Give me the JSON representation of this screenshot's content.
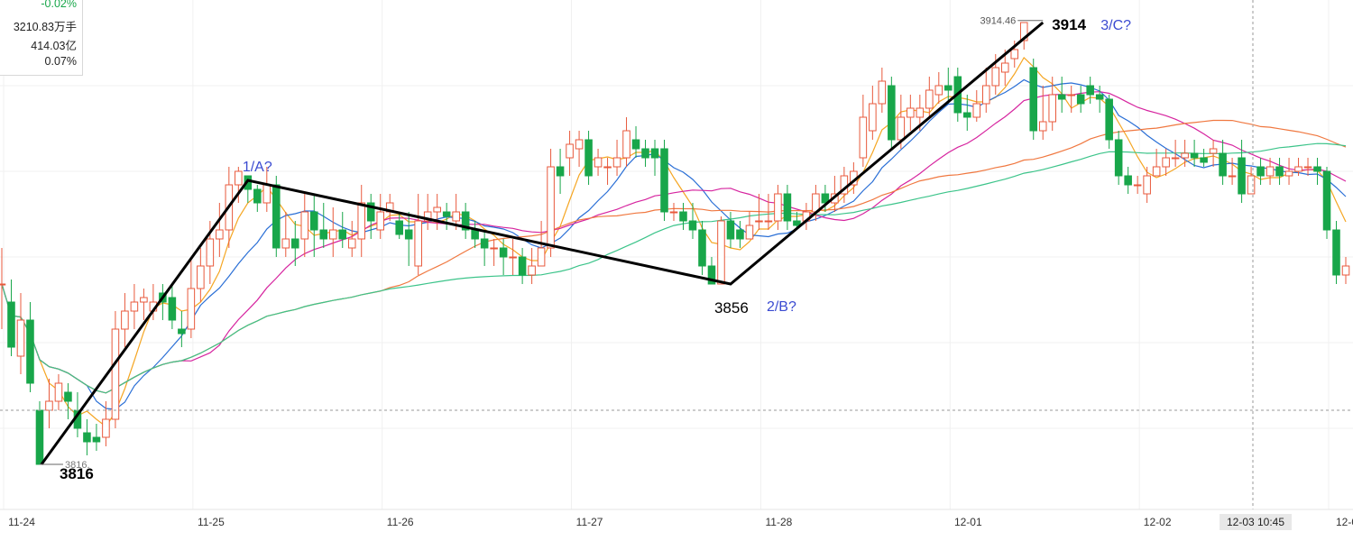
{
  "info_panel": {
    "change_pct": "-0.02%",
    "volume": "3210.83万手",
    "amount": "414.03亿",
    "turnover": "0.07%"
  },
  "crosshair_time": "12-03 10:45",
  "chart_data": {
    "type": "candlestick",
    "title": "",
    "xlabel": "",
    "ylabel": "",
    "x_tick_labels": [
      "11-24",
      "11-25",
      "11-26",
      "11-27",
      "11-28",
      "12-01",
      "12-02",
      "12-0"
    ],
    "ylim": [
      3810,
      3916
    ],
    "high_marker": "3914.46",
    "low_marker": "3816.",
    "annotations": {
      "points": [
        {
          "price": "3816",
          "wave": ""
        },
        {
          "price": "",
          "wave": "1/A?"
        },
        {
          "price": "3856",
          "wave": "2/B?"
        },
        {
          "price": "3914",
          "wave": "3/C?"
        }
      ],
      "trend_points": [
        3816,
        3879,
        3856,
        3914
      ]
    },
    "candles": [
      [
        3856,
        3856,
        3864,
        3846
      ],
      [
        3852,
        3842,
        3857,
        3840
      ],
      [
        3840,
        3848,
        3854,
        3836
      ],
      [
        3848,
        3834,
        3852,
        3832
      ],
      [
        3828,
        3816,
        3830,
        3816
      ],
      [
        3828,
        3830,
        3835,
        3824
      ],
      [
        3830,
        3834,
        3836,
        3828
      ],
      [
        3832,
        3830,
        3834,
        3826
      ],
      [
        3828,
        3824,
        3832,
        3822
      ],
      [
        3823,
        3821,
        3826,
        3818
      ],
      [
        3822,
        3821,
        3825,
        3819
      ],
      [
        3822,
        3826,
        3830,
        3820
      ],
      [
        3826,
        3846,
        3850,
        3824
      ],
      [
        3846,
        3850,
        3854,
        3842
      ],
      [
        3850,
        3852,
        3856,
        3846
      ],
      [
        3852,
        3853,
        3855,
        3848
      ],
      [
        3850,
        3852,
        3856,
        3848
      ],
      [
        3854,
        3852,
        3856,
        3848
      ],
      [
        3853,
        3848,
        3856,
        3846
      ],
      [
        3846,
        3845,
        3850,
        3842
      ],
      [
        3846,
        3855,
        3862,
        3844
      ],
      [
        3855,
        3860,
        3864,
        3852
      ],
      [
        3860,
        3866,
        3870,
        3856
      ],
      [
        3866,
        3868,
        3874,
        3862
      ],
      [
        3868,
        3878,
        3882,
        3864
      ],
      [
        3878,
        3881,
        3882,
        3874
      ],
      [
        3880,
        3877,
        3880,
        3874
      ],
      [
        3877,
        3874,
        3878,
        3872
      ],
      [
        3874,
        3878,
        3882,
        3872
      ],
      [
        3878,
        3864,
        3880,
        3862
      ],
      [
        3864,
        3866,
        3872,
        3862
      ],
      [
        3866,
        3864,
        3870,
        3860
      ],
      [
        3866,
        3872,
        3876,
        3862
      ],
      [
        3872,
        3868,
        3876,
        3862
      ],
      [
        3868,
        3866,
        3874,
        3864
      ],
      [
        3866,
        3868,
        3873,
        3862
      ],
      [
        3868,
        3866,
        3872,
        3864
      ],
      [
        3864,
        3866,
        3870,
        3862
      ],
      [
        3866,
        3874,
        3878,
        3862
      ],
      [
        3874,
        3870,
        3876,
        3866
      ],
      [
        3868,
        3872,
        3876,
        3866
      ],
      [
        3872,
        3874,
        3876,
        3870
      ],
      [
        3870,
        3867,
        3872,
        3866
      ],
      [
        3868,
        3866,
        3872,
        3860
      ],
      [
        3860,
        3870,
        3876,
        3858
      ],
      [
        3870,
        3872,
        3876,
        3868
      ],
      [
        3872,
        3873,
        3876,
        3868
      ],
      [
        3872,
        3871,
        3874,
        3868
      ],
      [
        3870,
        3872,
        3876,
        3868
      ],
      [
        3872,
        3868,
        3874,
        3866
      ],
      [
        3868,
        3866,
        3870,
        3864
      ],
      [
        3866,
        3864,
        3868,
        3860
      ],
      [
        3864,
        3864,
        3866,
        3860
      ],
      [
        3864,
        3862,
        3866,
        3858
      ],
      [
        3862,
        3862,
        3866,
        3858
      ],
      [
        3862,
        3858,
        3864,
        3856
      ],
      [
        3858,
        3860,
        3864,
        3856
      ],
      [
        3860,
        3864,
        3870,
        3860
      ],
      [
        3864,
        3882,
        3886,
        3862
      ],
      [
        3882,
        3880,
        3886,
        3876
      ],
      [
        3884,
        3887,
        3890,
        3880
      ],
      [
        3886,
        3888,
        3890,
        3882
      ],
      [
        3888,
        3880,
        3890,
        3878
      ],
      [
        3882,
        3884,
        3886,
        3880
      ],
      [
        3882,
        3882,
        3884,
        3878
      ],
      [
        3882,
        3884,
        3888,
        3880
      ],
      [
        3884,
        3890,
        3893,
        3882
      ],
      [
        3888,
        3886,
        3891,
        3884
      ],
      [
        3886,
        3884,
        3888,
        3882
      ],
      [
        3886,
        3884,
        3888,
        3880
      ],
      [
        3886,
        3872,
        3888,
        3870
      ],
      [
        3872,
        3872,
        3874,
        3870
      ],
      [
        3872,
        3870,
        3874,
        3868
      ],
      [
        3870,
        3868,
        3874,
        3866
      ],
      [
        3868,
        3860,
        3870,
        3858
      ],
      [
        3860,
        3856,
        3862,
        3856
      ],
      [
        3856,
        3870,
        3871,
        3856
      ],
      [
        3870,
        3866,
        3872,
        3864
      ],
      [
        3868,
        3866,
        3870,
        3864
      ],
      [
        3866,
        3869,
        3872,
        3866
      ],
      [
        3870,
        3870,
        3876,
        3868
      ],
      [
        3870,
        3870,
        3876,
        3868
      ],
      [
        3870,
        3876,
        3878,
        3868
      ],
      [
        3876,
        3870,
        3878,
        3868
      ],
      [
        3870,
        3869,
        3872,
        3868
      ],
      [
        3870,
        3872,
        3874,
        3868
      ],
      [
        3872,
        3876,
        3878,
        3870
      ],
      [
        3876,
        3874,
        3878,
        3872
      ],
      [
        3874,
        3876,
        3880,
        3872
      ],
      [
        3876,
        3880,
        3882,
        3874
      ],
      [
        3878,
        3881,
        3883,
        3876
      ],
      [
        3884,
        3893,
        3898,
        3882
      ],
      [
        3890,
        3896,
        3900,
        3888
      ],
      [
        3896,
        3901,
        3904,
        3894
      ],
      [
        3900,
        3888,
        3902,
        3886
      ],
      [
        3888,
        3893,
        3898,
        3886
      ],
      [
        3893,
        3895,
        3898,
        3890
      ],
      [
        3893,
        3895,
        3898,
        3890
      ],
      [
        3895,
        3899,
        3902,
        3893
      ],
      [
        3898,
        3900,
        3903,
        3896
      ],
      [
        3900,
        3899,
        3904,
        3896
      ],
      [
        3902,
        3894,
        3904,
        3892
      ],
      [
        3894,
        3893,
        3898,
        3890
      ],
      [
        3893,
        3896,
        3899,
        3892
      ],
      [
        3896,
        3900,
        3904,
        3894
      ],
      [
        3900,
        3904,
        3907,
        3898
      ],
      [
        3903,
        3905,
        3908,
        3900
      ],
      [
        3906,
        3908,
        3910,
        3904
      ],
      [
        3910,
        3914,
        3914,
        3908
      ],
      [
        3904,
        3890,
        3906,
        3888
      ],
      [
        3890,
        3892,
        3900,
        3888
      ],
      [
        3892,
        3898,
        3902,
        3890
      ],
      [
        3898,
        3897,
        3902,
        3894
      ],
      [
        3898,
        3898,
        3900,
        3894
      ],
      [
        3898,
        3896,
        3900,
        3894
      ],
      [
        3900,
        3898,
        3902,
        3896
      ],
      [
        3898,
        3897,
        3900,
        3894
      ],
      [
        3897,
        3888,
        3898,
        3886
      ],
      [
        3888,
        3880,
        3890,
        3878
      ],
      [
        3880,
        3878,
        3882,
        3876
      ],
      [
        3878,
        3878,
        3880,
        3876
      ],
      [
        3876,
        3880,
        3882,
        3874
      ],
      [
        3880,
        3882,
        3886,
        3880
      ],
      [
        3882,
        3884,
        3886,
        3880
      ],
      [
        3884,
        3884,
        3888,
        3882
      ],
      [
        3884,
        3885,
        3888,
        3882
      ],
      [
        3885,
        3884,
        3888,
        3882
      ],
      [
        3884,
        3883,
        3886,
        3882
      ],
      [
        3885,
        3886,
        3888,
        3882
      ],
      [
        3885,
        3880,
        3888,
        3878
      ],
      [
        3880,
        3880,
        3884,
        3878
      ],
      [
        3884,
        3876,
        3888,
        3874
      ],
      [
        3876,
        3880,
        3882,
        3876
      ],
      [
        3882,
        3880,
        3884,
        3878
      ],
      [
        3880,
        3882,
        3884,
        3878
      ],
      [
        3882,
        3880,
        3884,
        3878
      ],
      [
        3880,
        3881,
        3884,
        3878
      ],
      [
        3881,
        3882,
        3884,
        3880
      ],
      [
        3882,
        3882,
        3884,
        3880
      ],
      [
        3882,
        3881,
        3884,
        3878
      ],
      [
        3881,
        3868,
        3882,
        3866
      ],
      [
        3868,
        3858,
        3870,
        3856
      ],
      [
        3858,
        3860,
        3862,
        3856
      ]
    ]
  },
  "colors": {
    "up": "#e8593c",
    "down": "#18a64a",
    "ma_orange": "#f5a623",
    "ma_blue": "#2a6fd6",
    "ma_magenta": "#d6249f",
    "ma_redorange": "#f07840",
    "ma_teal": "#3cc48a",
    "wave_line": "#000000",
    "wave_label": "#3b4bd1",
    "grid": "#f0f0f0"
  }
}
